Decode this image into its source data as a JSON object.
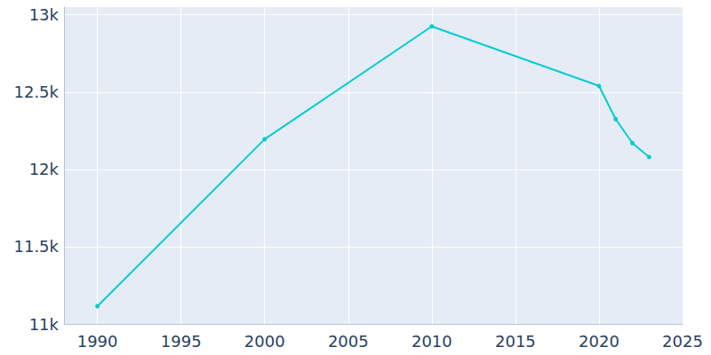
{
  "chart_data": {
    "type": "line",
    "x": [
      1990,
      2000,
      2010,
      2020,
      2021,
      2022,
      2023
    ],
    "values": [
      11115,
      12195,
      12925,
      12540,
      12325,
      12170,
      12080
    ],
    "color": "#00cdd0",
    "marker": "circle",
    "xlim": [
      1988,
      2025
    ],
    "xticks": [
      1990,
      1995,
      2000,
      2005,
      2010,
      2015,
      2020,
      2025
    ],
    "ylim": [
      11000,
      13050
    ],
    "yticks": [
      {
        "value": 11000,
        "label": "11k"
      },
      {
        "value": 11500,
        "label": "11.5k"
      },
      {
        "value": 12000,
        "label": "12k"
      },
      {
        "value": 12500,
        "label": "12.5k"
      },
      {
        "value": 13000,
        "label": "13k"
      }
    ],
    "grid": true
  }
}
